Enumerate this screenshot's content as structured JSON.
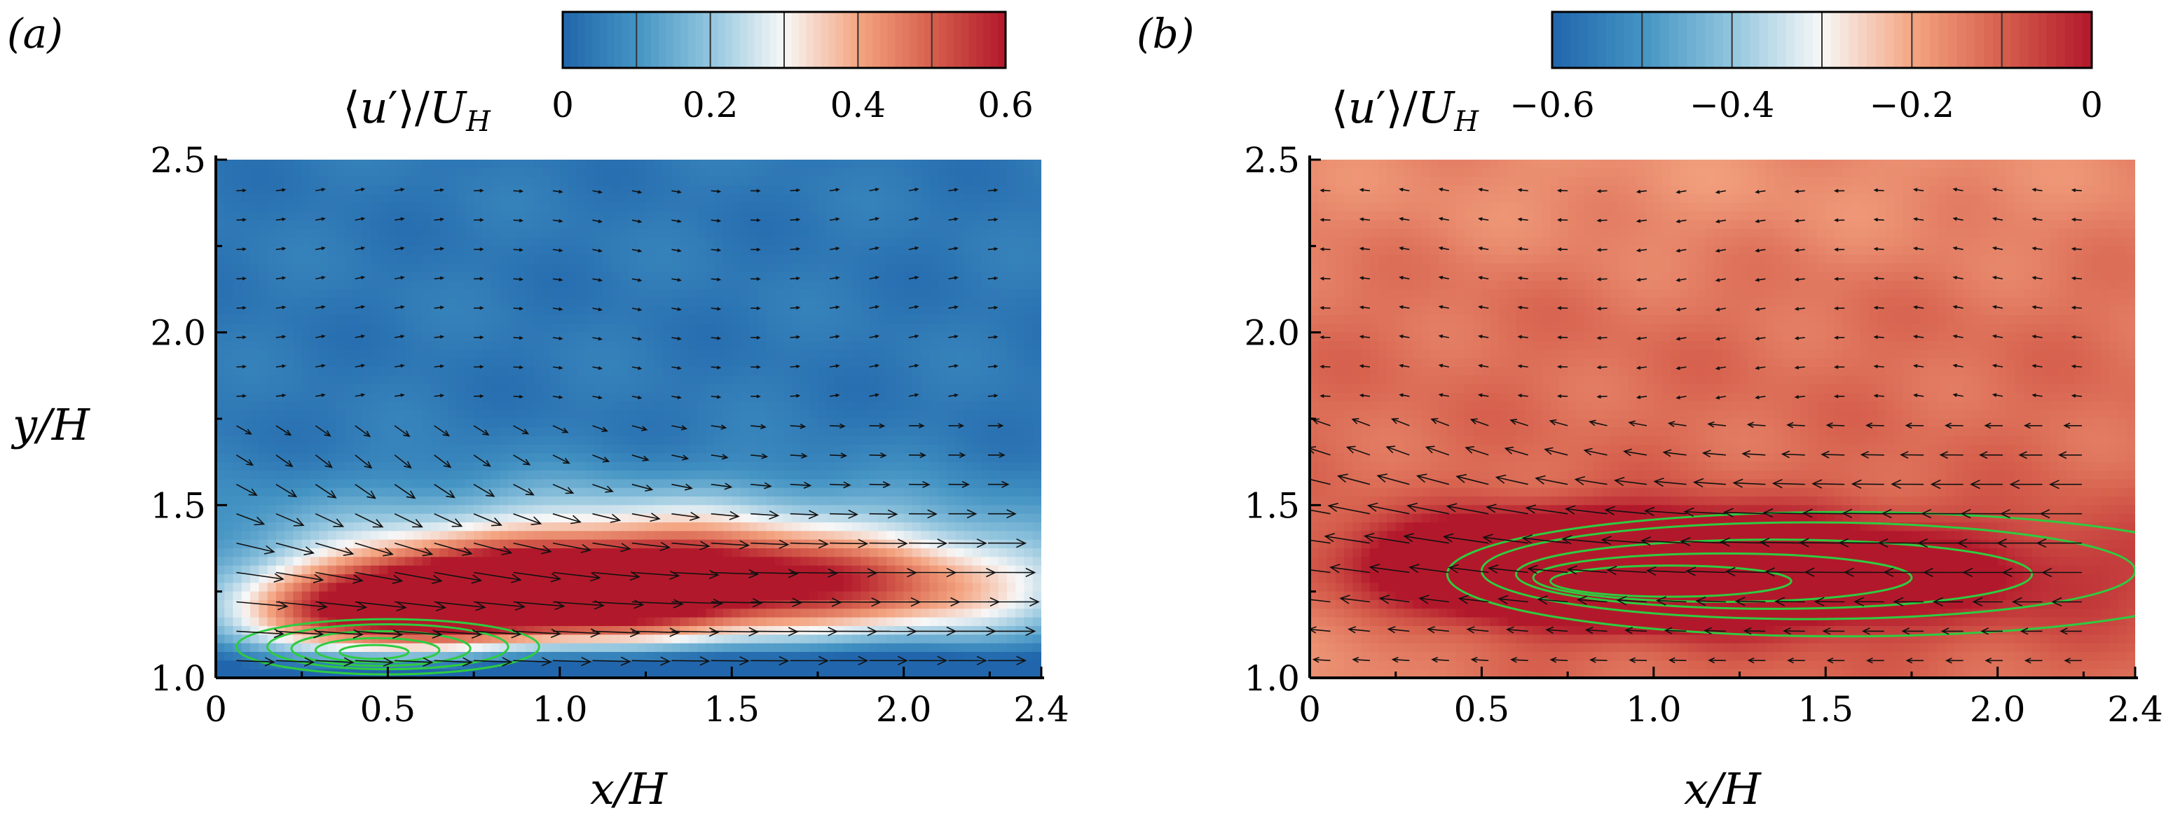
{
  "figure": {
    "description_labels": [
      "(a)",
      "(b)"
    ]
  },
  "chart_data": [
    {
      "type": "heatmap",
      "panel_label": "(a)",
      "title": "",
      "colorbar_label": "⟨u′⟩/U_H",
      "colorbar_label_parts": {
        "open": "⟨",
        "var": "u",
        "prime": "′",
        "close": "⟩/",
        "U": "U",
        "sub": "H"
      },
      "colorbar_range": [
        0,
        0.6
      ],
      "colorbar_ticks": [
        0,
        0.2,
        0.4,
        0.6
      ],
      "colorbar_tick_labels": [
        "0",
        "0.2",
        "0.4",
        "0.6"
      ],
      "colorbar_levels": 6,
      "colormap": [
        "#2166ac",
        "#4393c3",
        "#92c5de",
        "#f7f7f7",
        "#f4a582",
        "#d6604d",
        "#b2182b"
      ],
      "xlabel": "x/H",
      "ylabel": "y/H",
      "xlim": [
        0,
        2.4
      ],
      "ylim": [
        1.0,
        2.5
      ],
      "xticks": [
        0,
        0.5,
        1.0,
        1.5,
        2.0,
        2.4
      ],
      "xtick_labels": [
        "0",
        "0.5",
        "1.0",
        "1.5",
        "2.0",
        "2.4"
      ],
      "yticks": [
        1.0,
        1.5,
        2.0,
        2.5
      ],
      "ytick_labels": [
        "1.0",
        "1.5",
        "2.0",
        "2.5"
      ],
      "background_value": 0.04,
      "field_blobs": [
        {
          "x": 0.85,
          "y": 1.24,
          "sx": 0.42,
          "sy": 0.1,
          "amp": 0.58
        },
        {
          "x": 1.45,
          "y": 1.27,
          "sx": 0.45,
          "sy": 0.11,
          "amp": 0.4
        },
        {
          "x": 2.1,
          "y": 1.25,
          "sx": 0.35,
          "sy": 0.1,
          "amp": 0.22
        },
        {
          "x": 0.45,
          "y": 1.18,
          "sx": 0.28,
          "sy": 0.09,
          "amp": 0.35
        },
        {
          "x": 1.2,
          "y": 1.42,
          "sx": 0.8,
          "sy": 0.12,
          "amp": 0.18
        },
        {
          "x": 1.3,
          "y": 1.02,
          "sx": 1.0,
          "sy": 0.05,
          "amp": -0.2
        }
      ],
      "vector_field": {
        "u0": 0.38,
        "jet_y": 1.22,
        "jet_amp": 0.55,
        "jet_width": 0.18,
        "down_amp": 0.16,
        "down_y": 1.55,
        "down_x": 0.45
      },
      "contour_lines": {
        "color": "#2ecc40",
        "ellipses": [
          {
            "cx": 0.5,
            "cy": 1.09,
            "rx": 0.44,
            "ry": 0.08
          },
          {
            "cx": 0.5,
            "cy": 1.09,
            "rx": 0.35,
            "ry": 0.065
          },
          {
            "cx": 0.48,
            "cy": 1.085,
            "rx": 0.26,
            "ry": 0.05
          },
          {
            "cx": 0.47,
            "cy": 1.08,
            "rx": 0.18,
            "ry": 0.035
          },
          {
            "cx": 0.46,
            "cy": 1.075,
            "rx": 0.1,
            "ry": 0.02
          }
        ]
      }
    },
    {
      "type": "heatmap",
      "panel_label": "(b)",
      "title": "",
      "colorbar_label": "⟨u′⟩/U_H",
      "colorbar_label_parts": {
        "open": "⟨",
        "var": "u",
        "prime": "′",
        "close": "⟩/",
        "U": "U",
        "sub": "H"
      },
      "colorbar_range": [
        -0.6,
        0
      ],
      "colorbar_ticks": [
        -0.6,
        -0.4,
        -0.2,
        0
      ],
      "colorbar_tick_labels": [
        "−0.6",
        "−0.4",
        "−0.2",
        "0"
      ],
      "colorbar_levels": 6,
      "colormap": [
        "#2166ac",
        "#4393c3",
        "#92c5de",
        "#f7f7f7",
        "#f4a582",
        "#d6604d",
        "#b2182b"
      ],
      "xlabel": "x/H",
      "ylabel": "",
      "xlim": [
        0,
        2.4
      ],
      "ylim": [
        1.0,
        2.5
      ],
      "xticks": [
        0,
        0.5,
        1.0,
        1.5,
        2.0,
        2.4
      ],
      "xtick_labels": [
        "0",
        "0.5",
        "1.0",
        "1.5",
        "2.0",
        "2.4"
      ],
      "yticks": [
        1.0,
        1.5,
        2.0,
        2.5
      ],
      "ytick_labels": [
        "1.0",
        "1.5",
        "2.0",
        "2.5"
      ],
      "background_value": -0.12,
      "field_blobs": [
        {
          "x": 0.75,
          "y": 1.32,
          "sx": 0.35,
          "sy": 0.09,
          "amp": 0.5
        },
        {
          "x": 1.2,
          "y": 1.3,
          "sx": 0.35,
          "sy": 0.08,
          "amp": 0.3
        },
        {
          "x": 1.6,
          "y": 1.3,
          "sx": 0.7,
          "sy": 0.13,
          "amp": 0.12
        },
        {
          "x": 1.2,
          "y": 2.45,
          "sx": 1.5,
          "sy": 0.2,
          "amp": -0.05
        },
        {
          "x": 0.1,
          "y": 1.1,
          "sx": 0.25,
          "sy": 0.15,
          "amp": -0.05
        }
      ],
      "vector_field": {
        "u0": -0.4,
        "jet_y": 1.4,
        "jet_amp": -0.45,
        "jet_width": 0.15,
        "down_amp": -0.1,
        "down_y": 1.55,
        "down_x": 0.3
      },
      "contour_lines": {
        "color": "#2ecc40",
        "ellipses": [
          {
            "cx": 1.55,
            "cy": 1.3,
            "rx": 1.15,
            "ry": 0.18
          },
          {
            "cx": 1.45,
            "cy": 1.31,
            "rx": 0.95,
            "ry": 0.14
          },
          {
            "cx": 1.35,
            "cy": 1.3,
            "rx": 0.75,
            "ry": 0.1
          },
          {
            "cx": 1.2,
            "cy": 1.29,
            "rx": 0.55,
            "ry": 0.07
          },
          {
            "cx": 1.05,
            "cy": 1.28,
            "rx": 0.35,
            "ry": 0.045
          }
        ]
      }
    }
  ]
}
